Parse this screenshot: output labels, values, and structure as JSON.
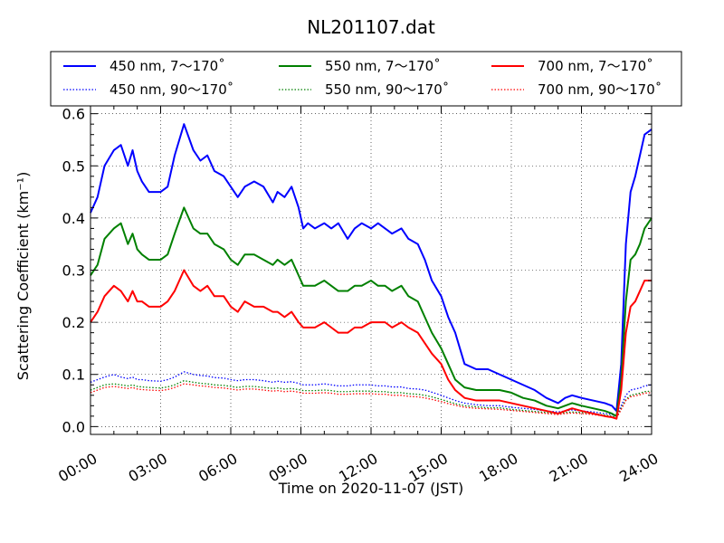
{
  "chart_data": {
    "type": "line",
    "title": "NL201107.dat",
    "xlabel": "Time on 2020-11-07 (JST)",
    "ylabel": "Scattering Coefficient (km⁻¹)",
    "xlim": [
      0,
      24
    ],
    "ylim": [
      -0.015,
      0.615
    ],
    "x_ticks": [
      0,
      3,
      6,
      9,
      12,
      15,
      18,
      21,
      24
    ],
    "x_tick_labels": [
      "00:00",
      "03:00",
      "06:00",
      "09:00",
      "12:00",
      "15:00",
      "18:00",
      "21:00",
      "24:00"
    ],
    "y_ticks": [
      0.0,
      0.1,
      0.2,
      0.3,
      0.4,
      0.5,
      0.6
    ],
    "y_tick_labels": [
      "0.0",
      "0.1",
      "0.2",
      "0.3",
      "0.4",
      "0.5",
      "0.6"
    ],
    "grid": true,
    "legend_position": "above plot, 3 columns",
    "x": [
      0,
      0.3,
      0.6,
      1.0,
      1.3,
      1.6,
      1.8,
      2.0,
      2.2,
      2.5,
      3.0,
      3.3,
      3.6,
      4.0,
      4.4,
      4.7,
      5.0,
      5.3,
      5.7,
      6.0,
      6.3,
      6.6,
      7.0,
      7.4,
      7.8,
      8.0,
      8.3,
      8.6,
      8.9,
      9.1,
      9.3,
      9.6,
      10.0,
      10.3,
      10.6,
      11.0,
      11.3,
      11.6,
      12.0,
      12.3,
      12.6,
      12.9,
      13.3,
      13.6,
      14.0,
      14.3,
      14.6,
      15.0,
      15.3,
      15.6,
      16.0,
      16.5,
      17.0,
      17.5,
      18.0,
      18.5,
      19.0,
      19.5,
      20.0,
      20.3,
      20.6,
      21.0,
      21.5,
      22.0,
      22.3,
      22.5,
      22.7,
      22.9,
      23.1,
      23.3,
      23.5,
      23.7,
      24.0
    ],
    "series": [
      {
        "name": "450 nm, 7～170˚",
        "color": "#0000ff",
        "style": "solid",
        "values": [
          0.41,
          0.44,
          0.5,
          0.53,
          0.54,
          0.5,
          0.53,
          0.49,
          0.47,
          0.45,
          0.45,
          0.46,
          0.52,
          0.58,
          0.53,
          0.51,
          0.52,
          0.49,
          0.48,
          0.46,
          0.44,
          0.46,
          0.47,
          0.46,
          0.43,
          0.45,
          0.44,
          0.46,
          0.42,
          0.38,
          0.39,
          0.38,
          0.39,
          0.38,
          0.39,
          0.36,
          0.38,
          0.39,
          0.38,
          0.39,
          0.38,
          0.37,
          0.38,
          0.36,
          0.35,
          0.32,
          0.28,
          0.25,
          0.21,
          0.18,
          0.12,
          0.11,
          0.11,
          0.1,
          0.09,
          0.08,
          0.07,
          0.055,
          0.045,
          0.055,
          0.06,
          0.055,
          0.05,
          0.045,
          0.04,
          0.03,
          0.12,
          0.35,
          0.45,
          0.48,
          0.52,
          0.56,
          0.57
        ]
      },
      {
        "name": "550 nm, 7～170˚",
        "color": "#008000",
        "style": "solid",
        "values": [
          0.29,
          0.31,
          0.36,
          0.38,
          0.39,
          0.35,
          0.37,
          0.34,
          0.33,
          0.32,
          0.32,
          0.33,
          0.37,
          0.42,
          0.38,
          0.37,
          0.37,
          0.35,
          0.34,
          0.32,
          0.31,
          0.33,
          0.33,
          0.32,
          0.31,
          0.32,
          0.31,
          0.32,
          0.29,
          0.27,
          0.27,
          0.27,
          0.28,
          0.27,
          0.26,
          0.26,
          0.27,
          0.27,
          0.28,
          0.27,
          0.27,
          0.26,
          0.27,
          0.25,
          0.24,
          0.21,
          0.18,
          0.15,
          0.12,
          0.09,
          0.075,
          0.07,
          0.07,
          0.07,
          0.065,
          0.055,
          0.05,
          0.04,
          0.035,
          0.04,
          0.045,
          0.04,
          0.035,
          0.03,
          0.025,
          0.02,
          0.09,
          0.24,
          0.32,
          0.33,
          0.35,
          0.38,
          0.4
        ]
      },
      {
        "name": "700 nm, 7～170˚",
        "color": "#ff0000",
        "style": "solid",
        "values": [
          0.2,
          0.22,
          0.25,
          0.27,
          0.26,
          0.24,
          0.26,
          0.24,
          0.24,
          0.23,
          0.23,
          0.24,
          0.26,
          0.3,
          0.27,
          0.26,
          0.27,
          0.25,
          0.25,
          0.23,
          0.22,
          0.24,
          0.23,
          0.23,
          0.22,
          0.22,
          0.21,
          0.22,
          0.2,
          0.19,
          0.19,
          0.19,
          0.2,
          0.19,
          0.18,
          0.18,
          0.19,
          0.19,
          0.2,
          0.2,
          0.2,
          0.19,
          0.2,
          0.19,
          0.18,
          0.16,
          0.14,
          0.12,
          0.09,
          0.07,
          0.055,
          0.05,
          0.05,
          0.05,
          0.045,
          0.04,
          0.035,
          0.03,
          0.025,
          0.03,
          0.035,
          0.03,
          0.025,
          0.02,
          0.018,
          0.015,
          0.07,
          0.18,
          0.23,
          0.24,
          0.26,
          0.28,
          0.28
        ]
      },
      {
        "name": "450 nm, 90～170˚",
        "color": "#0000ff",
        "style": "dotted",
        "values": [
          0.085,
          0.09,
          0.095,
          0.1,
          0.095,
          0.092,
          0.095,
          0.09,
          0.09,
          0.088,
          0.087,
          0.09,
          0.095,
          0.105,
          0.1,
          0.098,
          0.097,
          0.094,
          0.093,
          0.09,
          0.088,
          0.09,
          0.09,
          0.088,
          0.085,
          0.087,
          0.085,
          0.086,
          0.083,
          0.08,
          0.08,
          0.08,
          0.082,
          0.08,
          0.078,
          0.078,
          0.08,
          0.08,
          0.08,
          0.078,
          0.078,
          0.076,
          0.076,
          0.073,
          0.072,
          0.07,
          0.066,
          0.06,
          0.055,
          0.05,
          0.045,
          0.042,
          0.04,
          0.04,
          0.037,
          0.035,
          0.033,
          0.03,
          0.028,
          0.03,
          0.032,
          0.03,
          0.028,
          0.025,
          0.023,
          0.02,
          0.04,
          0.06,
          0.07,
          0.072,
          0.074,
          0.078,
          0.08
        ]
      },
      {
        "name": "550 nm, 90～170˚",
        "color": "#008000",
        "style": "dotted",
        "values": [
          0.07,
          0.075,
          0.08,
          0.082,
          0.08,
          0.078,
          0.08,
          0.077,
          0.076,
          0.075,
          0.074,
          0.076,
          0.08,
          0.088,
          0.085,
          0.083,
          0.082,
          0.08,
          0.079,
          0.077,
          0.075,
          0.077,
          0.077,
          0.075,
          0.073,
          0.074,
          0.072,
          0.073,
          0.071,
          0.069,
          0.069,
          0.069,
          0.07,
          0.069,
          0.067,
          0.067,
          0.068,
          0.068,
          0.068,
          0.067,
          0.067,
          0.065,
          0.065,
          0.063,
          0.062,
          0.06,
          0.057,
          0.052,
          0.048,
          0.044,
          0.04,
          0.038,
          0.036,
          0.036,
          0.033,
          0.031,
          0.029,
          0.027,
          0.025,
          0.027,
          0.028,
          0.027,
          0.025,
          0.022,
          0.02,
          0.018,
          0.035,
          0.052,
          0.06,
          0.062,
          0.064,
          0.067,
          0.068
        ]
      },
      {
        "name": "700 nm, 90～170˚",
        "color": "#ff0000",
        "style": "dotted",
        "values": [
          0.065,
          0.07,
          0.075,
          0.077,
          0.075,
          0.073,
          0.075,
          0.072,
          0.071,
          0.07,
          0.069,
          0.071,
          0.075,
          0.082,
          0.08,
          0.078,
          0.077,
          0.075,
          0.074,
          0.072,
          0.07,
          0.072,
          0.072,
          0.07,
          0.068,
          0.069,
          0.067,
          0.068,
          0.066,
          0.064,
          0.064,
          0.064,
          0.065,
          0.064,
          0.062,
          0.062,
          0.063,
          0.063,
          0.063,
          0.062,
          0.062,
          0.06,
          0.06,
          0.058,
          0.057,
          0.055,
          0.052,
          0.048,
          0.044,
          0.041,
          0.037,
          0.035,
          0.034,
          0.033,
          0.031,
          0.029,
          0.027,
          0.025,
          0.023,
          0.025,
          0.026,
          0.025,
          0.023,
          0.02,
          0.018,
          0.016,
          0.033,
          0.05,
          0.057,
          0.059,
          0.061,
          0.064,
          0.065
        ]
      }
    ]
  }
}
